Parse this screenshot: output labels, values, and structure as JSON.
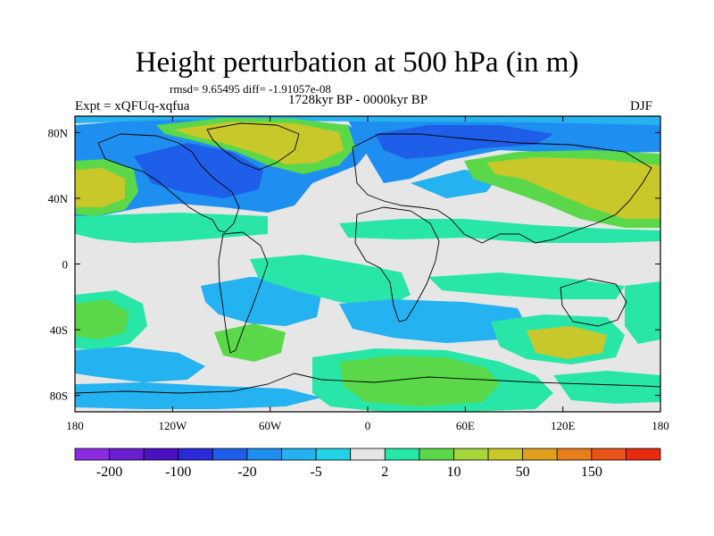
{
  "title": "Height perturbation at 500 hPa (in m)",
  "stats": "rmsd= 9.65495 diff= -1.91057e-08",
  "left_label": "Expt = xQFUq-xqfua",
  "center_label": "1728kyr BP - 0000kyr BP",
  "right_label": "DJF",
  "map": {
    "projection": "cylindrical equidistant",
    "lon_range": [
      -180,
      180
    ],
    "lat_range": [
      -90,
      90
    ],
    "lon_ticks": [
      {
        "value": -180,
        "label": "180"
      },
      {
        "value": -120,
        "label": "120W"
      },
      {
        "value": -60,
        "label": "60W"
      },
      {
        "value": 0,
        "label": "0"
      },
      {
        "value": 60,
        "label": "60E"
      },
      {
        "value": 120,
        "label": "120E"
      },
      {
        "value": 180,
        "label": "180"
      }
    ],
    "lat_ticks": [
      {
        "value": 80,
        "label": "80N"
      },
      {
        "value": 40,
        "label": "40N"
      },
      {
        "value": 0,
        "label": "0"
      },
      {
        "value": -40,
        "label": "40S"
      },
      {
        "value": -80,
        "label": "80S"
      }
    ]
  },
  "colorbar": {
    "colors": [
      "#8a2be2",
      "#6a1ed0",
      "#4b10c0",
      "#2a2ad8",
      "#1f5ee8",
      "#1e8ff0",
      "#25b2f0",
      "#22d2e6",
      "#e6e6e6",
      "#28e6a8",
      "#5ad84a",
      "#a6d63a",
      "#c8c82a",
      "#e0a01e",
      "#e87e1a",
      "#e85418",
      "#e82a10"
    ],
    "label_text": [
      "-200",
      "-100",
      "-20",
      "-5",
      "2",
      "10",
      "50",
      "150"
    ]
  }
}
